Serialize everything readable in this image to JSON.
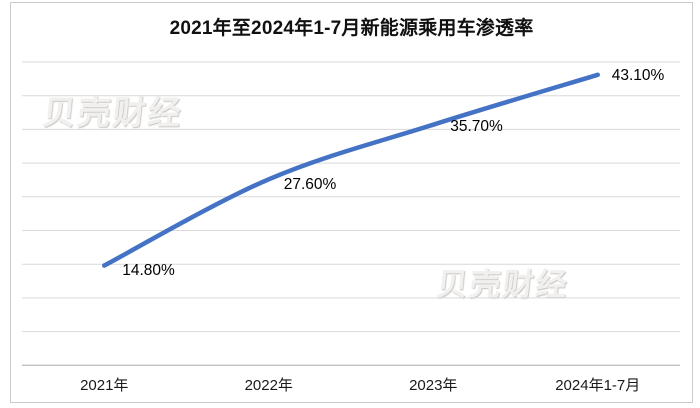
{
  "chart": {
    "title": "2021年至2024年1-7月新能源乘用车渗透率"
  },
  "watermarks": [
    {
      "text": "贝壳财经"
    },
    {
      "text": "贝壳财经"
    }
  ],
  "chart_data": {
    "type": "line",
    "title": "2021年至2024年1-7月新能源乘用车渗透率",
    "categories": [
      "2021年",
      "2022年",
      "2023年",
      "2024年1-7月"
    ],
    "values": [
      14.8,
      27.6,
      35.7,
      43.1
    ],
    "data_labels": [
      "14.80%",
      "27.60%",
      "35.70%",
      "43.10%"
    ],
    "xlabel": "",
    "ylabel": "",
    "ylim": [
      0,
      45
    ],
    "grid_step": 5,
    "grid": "horizontal-only, no y-axis tick labels",
    "legend": "none",
    "line_color": "#4472C4",
    "gridline_color": "#d9d9d9",
    "axis_line_color": "#bfbfbf",
    "watermark_text": "贝壳财经"
  }
}
